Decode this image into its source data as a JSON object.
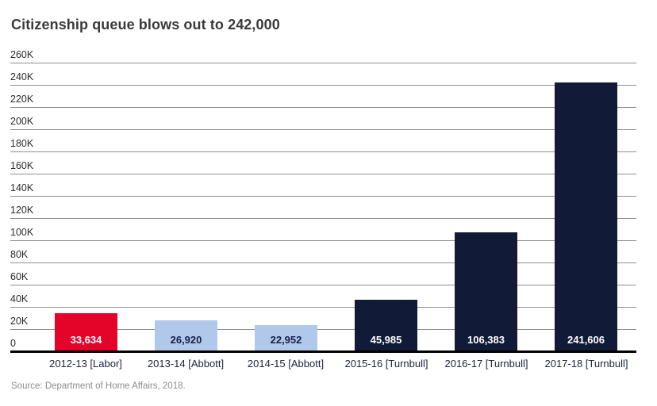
{
  "title": "Citizenship queue blows out to 242,000",
  "source": "Source: Department of Home Affairs, 2018.",
  "chart_data": {
    "type": "bar",
    "title": "Citizenship queue blows out to 242,000",
    "categories": [
      "2012-13 [Labor]",
      "2013-14 [Abbott]",
      "2014-15 [Abbott]",
      "2015-16 [Turnbull]",
      "2016-17 [Turnbull]",
      "2017-18 [Turnbull]"
    ],
    "values": [
      33634,
      26920,
      22952,
      45985,
      106383,
      241606
    ],
    "value_labels": [
      "33,634",
      "26,920",
      "22,952",
      "45,985",
      "106,383",
      "241,606"
    ],
    "bar_colors": [
      "#e40429",
      "#b0c8ea",
      "#b0c8ea",
      "#111b38",
      "#111b38",
      "#111b38"
    ],
    "value_label_colors": [
      "#ffffff",
      "#15224a",
      "#15224a",
      "#ffffff",
      "#ffffff",
      "#ffffff"
    ],
    "xlabel": "",
    "ylabel": "",
    "ylim": [
      0,
      260000
    ],
    "ytick_step": 20000,
    "ytick_labels": [
      "0",
      "20K",
      "40K",
      "60K",
      "80K",
      "100K",
      "120K",
      "140K",
      "160K",
      "180K",
      "200K",
      "220K",
      "240K",
      "260K"
    ],
    "grid": true,
    "legend_position": "none",
    "annotation": "Source: Department of Home Affairs, 2018."
  },
  "colors": {
    "labor_red": "#e40429",
    "abbott_light_blue": "#b0c8ea",
    "turnbull_navy": "#111b38",
    "gridline": "#8f8f8f",
    "baseline": "#000000",
    "title_text": "#3a3a3a",
    "ytick_text": "#2b2b2b",
    "xtick_text": "#1b2240",
    "source_text": "#8c8c8c",
    "background": "#ffffff"
  }
}
